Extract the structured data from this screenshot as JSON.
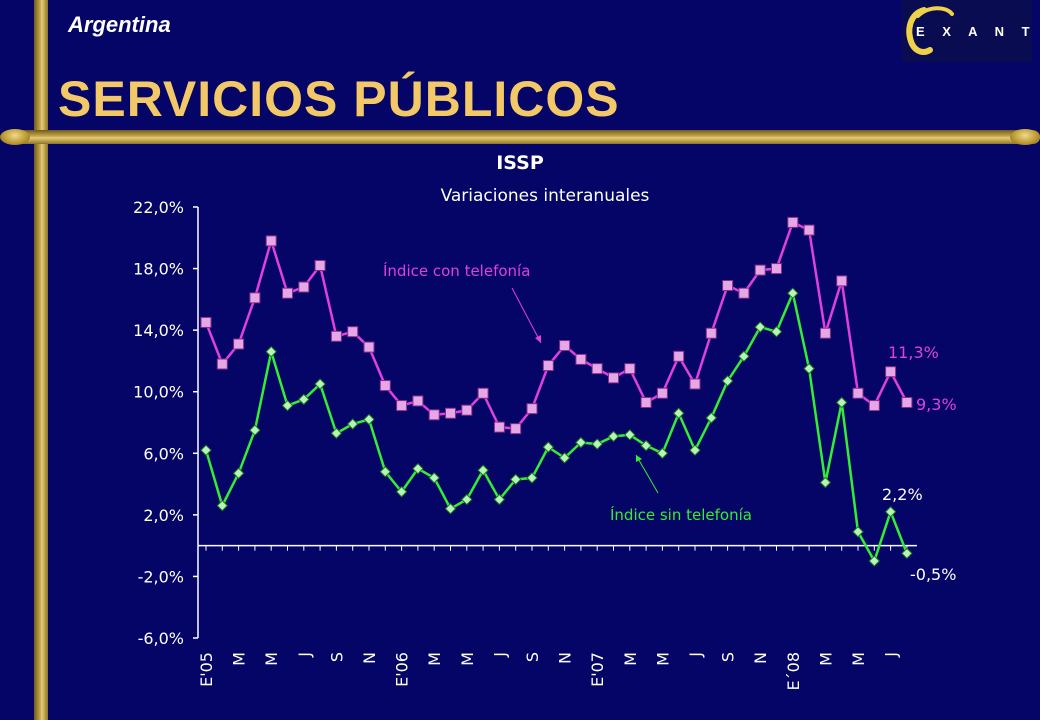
{
  "header": {
    "country": "Argentina",
    "title": "SERVICIOS PÚBLICOS",
    "logo_text": "EXANTE"
  },
  "colors": {
    "background": "#040566",
    "title_gold": "#f3c867",
    "series_con": "#e040e0",
    "series_con_marker": "#e6a7e6",
    "series_sin": "#33ee33",
    "series_sin_marker": "#b6f5b6"
  },
  "chart_data": {
    "type": "line",
    "title": "ISSP",
    "subtitle": "Variaciones interanuales",
    "ylim": [
      -6.0,
      22.0
    ],
    "yticks": [
      "22,0%",
      "18,0%",
      "14,0%",
      "10,0%",
      "6,0%",
      "2,0%",
      "-2,0%",
      "-6,0%"
    ],
    "ytick_values": [
      22,
      18,
      14,
      10,
      6,
      2,
      -2,
      -6
    ],
    "xtick_labels": [
      "E'05",
      "M",
      "M",
      "J",
      "S",
      "N",
      "E'06",
      "M",
      "M",
      "J",
      "S",
      "N",
      "E'07",
      "M",
      "M",
      "J",
      "S",
      "N",
      "E´08",
      "M",
      "M",
      "J"
    ],
    "series": [
      {
        "name": "Índice con telefonía",
        "values": [
          14.5,
          11.8,
          13.1,
          16.1,
          19.8,
          16.4,
          16.8,
          18.2,
          13.6,
          13.9,
          12.9,
          10.4,
          9.1,
          9.4,
          8.5,
          8.6,
          8.8,
          9.9,
          7.7,
          7.6,
          8.9,
          11.7,
          13.0,
          12.1,
          11.5,
          10.9,
          11.5,
          9.3,
          9.9,
          12.3,
          10.5,
          13.8,
          16.9,
          16.4,
          17.9,
          18.0,
          21.0,
          20.5,
          13.8,
          17.2,
          9.9,
          9.1,
          11.3,
          9.3
        ]
      },
      {
        "name": "Índice sin telefonía",
        "values": [
          6.2,
          2.6,
          4.7,
          7.5,
          12.6,
          9.1,
          9.5,
          10.5,
          7.3,
          7.9,
          8.2,
          4.8,
          3.5,
          5.0,
          4.4,
          2.4,
          3.0,
          4.9,
          3.0,
          4.3,
          4.4,
          6.4,
          5.7,
          6.7,
          6.6,
          7.1,
          7.2,
          6.5,
          6.0,
          8.6,
          6.2,
          8.3,
          10.7,
          12.3,
          14.2,
          13.9,
          16.4,
          11.5,
          4.1,
          9.3,
          0.9,
          -1.0,
          2.2,
          -0.5
        ]
      }
    ],
    "annotations": [
      {
        "text": "Índice con telefonía"
      },
      {
        "text": "Índice sin telefonía"
      },
      {
        "text": "11,3%"
      },
      {
        "text": "9,3%"
      },
      {
        "text": "2,2%"
      },
      {
        "text": "-0,5%"
      }
    ]
  }
}
